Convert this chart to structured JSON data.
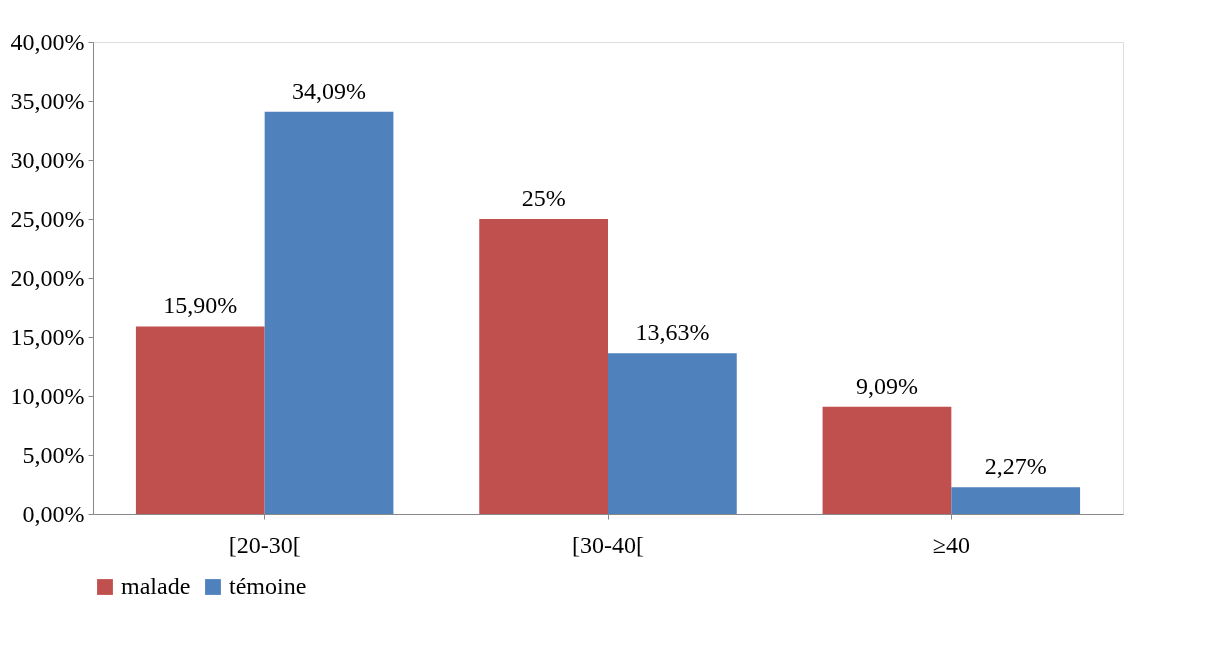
{
  "chart_data": {
    "type": "bar",
    "categories": [
      "[20-30[",
      "[30-40[",
      "≥40"
    ],
    "series": [
      {
        "name": "malade",
        "color": "#c0504d",
        "values": [
          15.9,
          25,
          9.09
        ],
        "value_labels": [
          "15,90%",
          "25%",
          "9,09%"
        ]
      },
      {
        "name": "témoine",
        "color": "#4f81bd",
        "values": [
          34.09,
          13.63,
          2.27
        ],
        "value_labels": [
          "34,09%",
          "13,63%",
          "2,27%"
        ]
      }
    ],
    "ylim": [
      0,
      40
    ],
    "yticks": [
      {
        "value": 0,
        "label": "0,00%"
      },
      {
        "value": 5,
        "label": "5,00%"
      },
      {
        "value": 10,
        "label": "10,00%"
      },
      {
        "value": 15,
        "label": "15,00%"
      },
      {
        "value": 20,
        "label": "20,00%"
      },
      {
        "value": 25,
        "label": "25,00%"
      },
      {
        "value": 30,
        "label": "30,00%"
      },
      {
        "value": 35,
        "label": "35,00%"
      },
      {
        "value": 40,
        "label": "40,00%"
      }
    ],
    "grid": false,
    "legend": "bottom"
  }
}
